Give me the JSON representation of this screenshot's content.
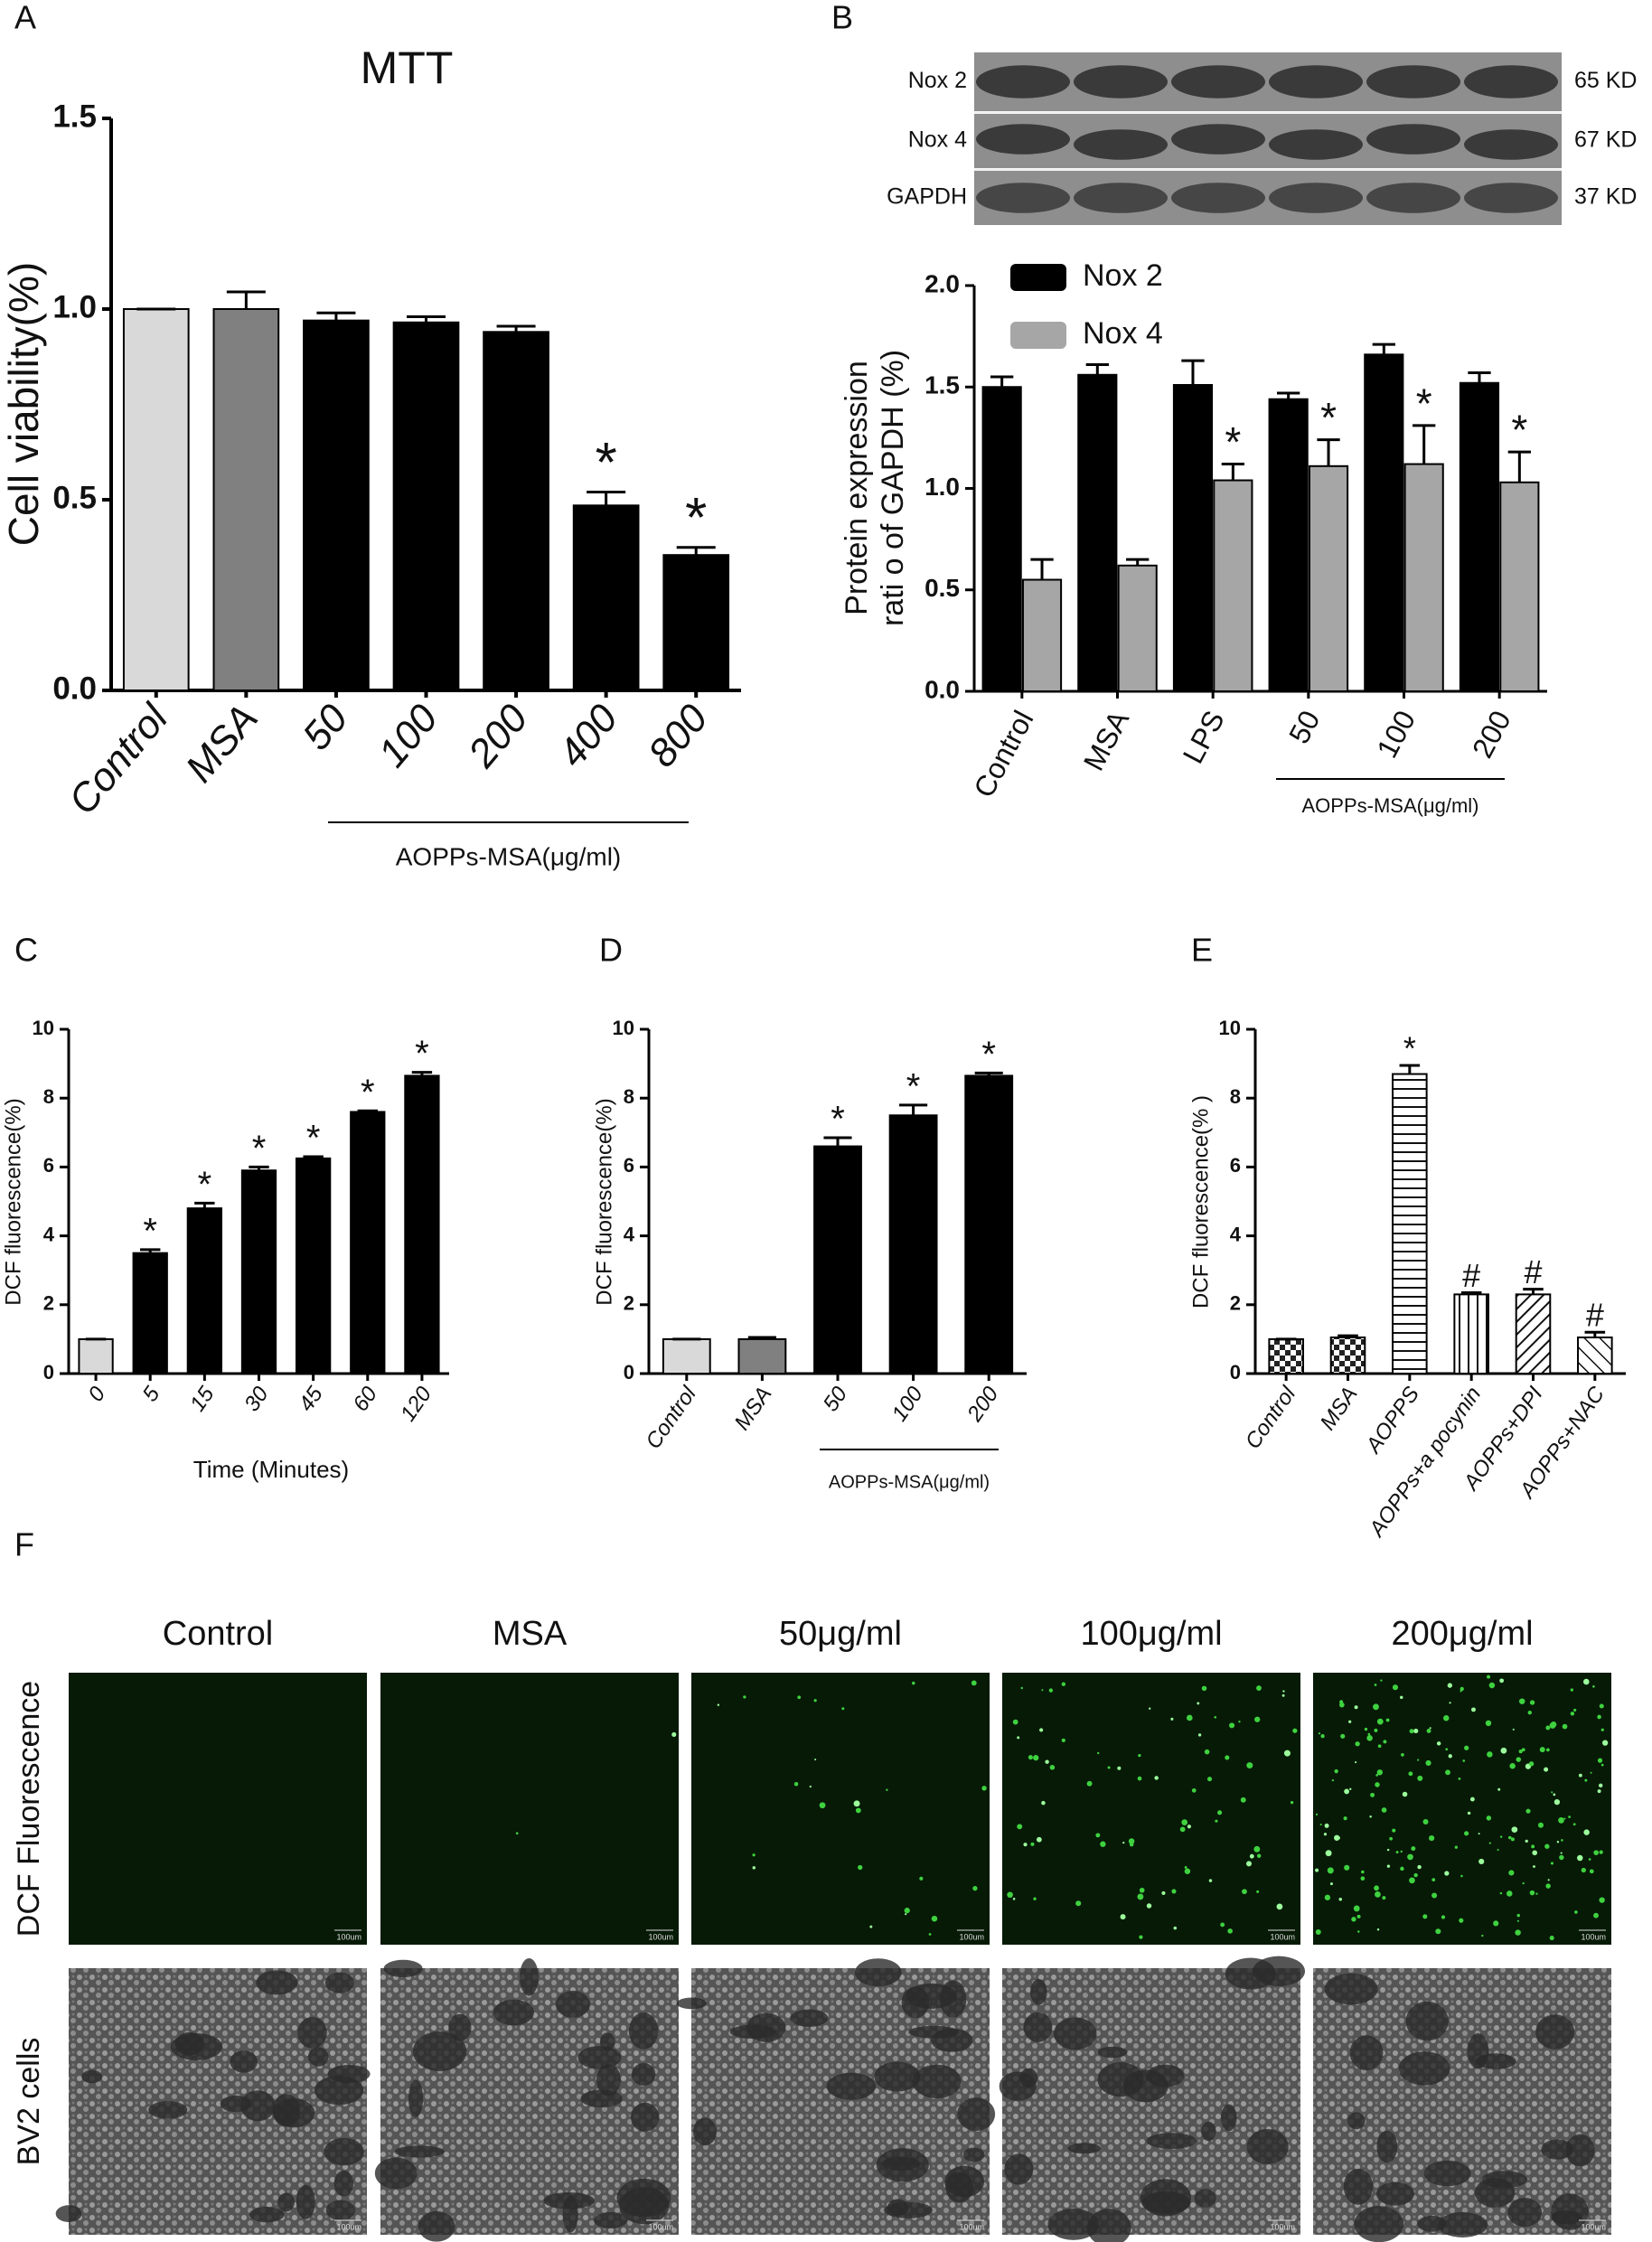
{
  "panel_labels": [
    "A",
    "B",
    "C",
    "D",
    "E",
    "F"
  ],
  "blot": {
    "rows": [
      "Nox 2",
      "Nox 4",
      "GAPDH"
    ],
    "sizes": [
      "65 KD",
      "67 KD",
      "37 KD"
    ]
  },
  "chart_data": [
    {
      "type": "bar",
      "title": "MTT",
      "y_label": "Cell viability(%)",
      "group_label": "AOPPs-MSA(μg/ml)",
      "categories": [
        "Control",
        "MSA",
        "50",
        "100",
        "200",
        "400",
        "800"
      ],
      "values": [
        1.0,
        1.0,
        0.97,
        0.965,
        0.94,
        0.485,
        0.355
      ],
      "errors": [
        0,
        0.045,
        0.02,
        0.015,
        0.015,
        0.035,
        0.02
      ],
      "colors": [
        "#d9d9d9",
        "#808080",
        "#000000",
        "#000000",
        "#000000",
        "#000000",
        "#000000"
      ],
      "markers": [
        null,
        null,
        null,
        null,
        null,
        "*",
        "*"
      ],
      "ylim": [
        0,
        1.5
      ],
      "yticks": [
        {
          "value": 0,
          "label": "0.0"
        },
        {
          "value": 0.5,
          "label": "0.5"
        },
        {
          "value": 1,
          "label": "1.0"
        },
        {
          "value": 1.5,
          "label": "1.5"
        }
      ]
    },
    {
      "type": "grouped-bar",
      "y_label": [
        "Protein  expression",
        "rati o of  GAPDH (%)"
      ],
      "group_label": "AOPPs-MSA(μg/ml)",
      "categories": [
        "Control",
        "MSA",
        "LPS",
        "50",
        "100",
        "200"
      ],
      "series": [
        {
          "name": "Nox 2",
          "color": "#000000",
          "values": [
            1.5,
            1.56,
            1.51,
            1.44,
            1.66,
            1.52
          ],
          "errors": [
            0.05,
            0.05,
            0.12,
            0.03,
            0.05,
            0.05
          ],
          "markers": [
            null,
            null,
            null,
            null,
            null,
            null
          ]
        },
        {
          "name": "Nox 4",
          "color": "#a6a6a6",
          "values": [
            0.55,
            0.62,
            1.04,
            1.11,
            1.12,
            1.03
          ],
          "errors": [
            0.1,
            0.03,
            0.08,
            0.13,
            0.19,
            0.15
          ],
          "markers": [
            null,
            null,
            "*",
            "*",
            "*",
            "*"
          ]
        }
      ],
      "ylim": [
        0,
        2
      ],
      "yticks": [
        {
          "value": 0,
          "label": "0.0"
        },
        {
          "value": 0.5,
          "label": "0.5"
        },
        {
          "value": 1,
          "label": "1.0"
        },
        {
          "value": 1.5,
          "label": "1.5"
        },
        {
          "value": 2,
          "label": "2.0"
        }
      ]
    },
    {
      "type": "bar",
      "y_label": "DCF fluorescence(%)",
      "x_label": "Time (Minutes)",
      "categories": [
        "0",
        "5",
        "15",
        "30",
        "45",
        "60",
        "120"
      ],
      "values": [
        1,
        3.5,
        4.8,
        5.9,
        6.25,
        7.6,
        8.65
      ],
      "errors": [
        0,
        0.1,
        0.15,
        0.1,
        0.05,
        0.03,
        0.1
      ],
      "colors": [
        "#d9d9d9",
        "#000000",
        "#000000",
        "#000000",
        "#000000",
        "#000000",
        "#000000"
      ],
      "markers": [
        null,
        "*",
        "*",
        "*",
        "*",
        "*",
        "*"
      ],
      "ylim": [
        0,
        10
      ],
      "yticks": [
        0,
        2,
        4,
        6,
        8,
        10
      ]
    },
    {
      "type": "bar",
      "y_label": "DCF fluorescence(%)",
      "group_label": "AOPPs-MSA(μg/ml)",
      "categories": [
        "Control",
        "MSA",
        "50",
        "100",
        "200"
      ],
      "values": [
        1,
        1,
        6.6,
        7.5,
        8.65
      ],
      "errors": [
        0,
        0.05,
        0.25,
        0.3,
        0.08
      ],
      "colors": [
        "#d9d9d9",
        "#808080",
        "#000000",
        "#000000",
        "#000000"
      ],
      "markers": [
        null,
        null,
        "*",
        "*",
        "*"
      ],
      "ylim": [
        0,
        10
      ],
      "yticks": [
        0,
        2,
        4,
        6,
        8,
        10
      ]
    },
    {
      "type": "bar",
      "y_label": "DCF fluorescence(%  )",
      "categories": [
        "Control",
        "MSA",
        "AOPPS",
        "AOPPs+a pocynin",
        "AOPPs+DPI",
        "AOPPs+NAC"
      ],
      "values": [
        1,
        1.05,
        8.7,
        2.3,
        2.3,
        1.05
      ],
      "errors": [
        0,
        0.05,
        0.25,
        0.05,
        0.15,
        0.15
      ],
      "patterns": [
        "checker",
        "checker",
        "hlines",
        "vlines",
        "diag",
        "diag2"
      ],
      "markers": [
        null,
        null,
        "*",
        "#",
        "#",
        "#"
      ],
      "ylim": [
        0,
        10
      ],
      "yticks": [
        0,
        2,
        4,
        6,
        8,
        10
      ]
    }
  ],
  "images": {
    "columns": [
      "Control",
      "MSA",
      "50μg/ml",
      "100μg/ml",
      "200μg/ml"
    ],
    "rows": [
      "DCF  Fluorescence",
      "BV2  cells"
    ],
    "scale_bar": "100um"
  }
}
